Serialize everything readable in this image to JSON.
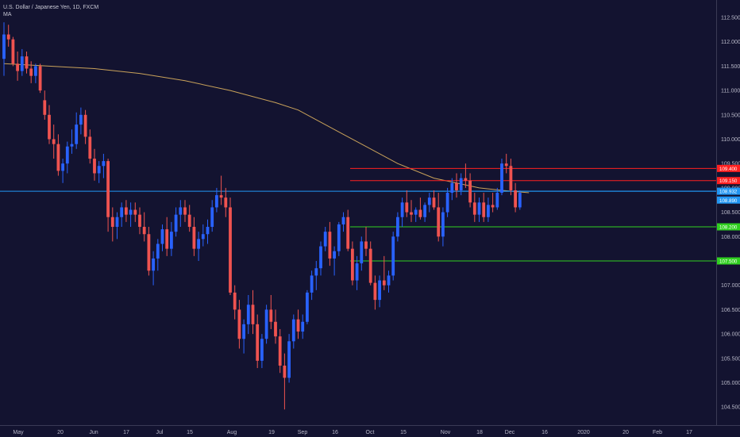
{
  "legend": {
    "title": "U.S. Dollar / Japanese Yen, 1D, FXCM",
    "indicator": "MA"
  },
  "colors": {
    "background": "#131330",
    "up": "#2962ff",
    "down": "#ef5350",
    "ma": "#c9a25a",
    "resistance": "#ff2020",
    "support": "#30d020",
    "current": "#2196f3",
    "axis_text": "#b8b8c8"
  },
  "chart_data": {
    "type": "candlestick",
    "title": "U.S. Dollar / Japanese Yen, 1D, FXCM",
    "y_axis": {
      "ticks": [
        "112.500",
        "112.000",
        "111.500",
        "111.000",
        "110.500",
        "110.000",
        "109.500",
        "109.000",
        "108.500",
        "108.000",
        "107.500",
        "107.000",
        "106.500",
        "106.000",
        "105.500",
        "105.000",
        "104.500"
      ],
      "range": [
        104.3,
        112.8
      ],
      "position": "right"
    },
    "x_axis": {
      "ticks": [
        "May",
        "20",
        "Jun",
        "17",
        "Jul",
        "15",
        "Aug",
        "19",
        "Sep",
        "16",
        "Oct",
        "15",
        "Nov",
        "18",
        "Dec",
        "16",
        "2020",
        "20",
        "Feb",
        "17"
      ]
    },
    "horizontal_levels": [
      {
        "label": "109.400",
        "value": 109.4,
        "kind": "resistance"
      },
      {
        "label": "109.150",
        "value": 109.15,
        "kind": "resistance"
      },
      {
        "label": "108.932",
        "value": 108.932,
        "kind": "current"
      },
      {
        "label": "108.890",
        "value": 108.75,
        "kind": "current"
      },
      {
        "label": "108.200",
        "value": 108.2,
        "kind": "support"
      },
      {
        "label": "107.500",
        "value": 107.5,
        "kind": "support"
      }
    ],
    "candles_ohlc": [
      [
        111.65,
        112.4,
        111.3,
        112.15
      ],
      [
        112.15,
        112.35,
        111.9,
        112.05
      ],
      [
        112.05,
        112.1,
        111.5,
        111.55
      ],
      [
        111.55,
        111.8,
        111.2,
        111.4
      ],
      [
        111.4,
        111.85,
        111.3,
        111.7
      ],
      [
        111.7,
        111.8,
        111.35,
        111.45
      ],
      [
        111.45,
        111.6,
        111.15,
        111.3
      ],
      [
        111.3,
        111.55,
        111.15,
        111.5
      ],
      [
        111.5,
        111.55,
        110.95,
        111.0
      ],
      [
        110.8,
        111.0,
        110.4,
        110.5
      ],
      [
        110.5,
        110.7,
        109.9,
        110.0
      ],
      [
        110.0,
        110.3,
        109.6,
        109.9
      ],
      [
        109.9,
        110.1,
        109.25,
        109.35
      ],
      [
        109.35,
        109.6,
        109.1,
        109.5
      ],
      [
        109.5,
        109.95,
        109.3,
        109.85
      ],
      [
        109.85,
        110.2,
        109.7,
        109.9
      ],
      [
        109.9,
        110.55,
        109.8,
        110.3
      ],
      [
        110.3,
        110.65,
        110.1,
        110.5
      ],
      [
        110.5,
        110.6,
        109.9,
        110.05
      ],
      [
        110.05,
        110.2,
        109.5,
        109.6
      ],
      [
        109.6,
        109.8,
        109.15,
        109.3
      ],
      [
        109.3,
        109.55,
        109.1,
        109.45
      ],
      [
        109.45,
        109.7,
        109.2,
        109.55
      ],
      [
        109.55,
        109.6,
        108.1,
        108.4
      ],
      [
        108.4,
        108.6,
        107.9,
        108.2
      ],
      [
        108.2,
        108.5,
        107.95,
        108.4
      ],
      [
        108.4,
        108.7,
        108.2,
        108.6
      ],
      [
        108.6,
        108.75,
        108.3,
        108.45
      ],
      [
        108.45,
        108.7,
        108.2,
        108.55
      ],
      [
        108.55,
        108.7,
        108.3,
        108.45
      ],
      [
        108.45,
        108.6,
        108.05,
        108.2
      ],
      [
        108.2,
        108.5,
        107.9,
        108.05
      ],
      [
        108.05,
        108.2,
        107.2,
        107.3
      ],
      [
        107.3,
        107.7,
        107.0,
        107.55
      ],
      [
        107.55,
        107.95,
        107.3,
        107.85
      ],
      [
        107.85,
        108.25,
        107.7,
        108.15
      ],
      [
        108.15,
        108.4,
        107.6,
        107.75
      ],
      [
        107.75,
        108.3,
        107.6,
        108.1
      ],
      [
        108.1,
        108.6,
        108.0,
        108.45
      ],
      [
        108.45,
        108.75,
        108.2,
        108.6
      ],
      [
        108.6,
        108.75,
        108.3,
        108.45
      ],
      [
        108.45,
        108.65,
        108.1,
        108.2
      ],
      [
        108.2,
        108.4,
        107.6,
        107.75
      ],
      [
        107.75,
        108.1,
        107.5,
        107.95
      ],
      [
        107.95,
        108.25,
        107.8,
        108.05
      ],
      [
        108.05,
        108.35,
        107.85,
        108.2
      ],
      [
        108.2,
        108.75,
        108.1,
        108.6
      ],
      [
        108.6,
        109.0,
        108.5,
        108.85
      ],
      [
        108.85,
        109.25,
        108.65,
        108.8
      ],
      [
        108.8,
        109.0,
        108.4,
        108.6
      ],
      [
        108.6,
        108.8,
        106.8,
        106.85
      ],
      [
        106.85,
        107.0,
        106.3,
        106.5
      ],
      [
        106.5,
        106.7,
        105.7,
        105.9
      ],
      [
        105.9,
        106.3,
        105.6,
        106.2
      ],
      [
        106.2,
        106.8,
        106.0,
        106.6
      ],
      [
        106.6,
        106.9,
        106.0,
        106.2
      ],
      [
        106.2,
        106.4,
        105.3,
        105.45
      ],
      [
        105.45,
        106.0,
        105.3,
        105.9
      ],
      [
        105.9,
        106.6,
        105.8,
        106.5
      ],
      [
        106.5,
        106.8,
        106.1,
        106.25
      ],
      [
        106.25,
        106.5,
        105.8,
        105.95
      ],
      [
        105.95,
        106.1,
        105.2,
        105.35
      ],
      [
        105.35,
        105.6,
        104.45,
        105.1
      ],
      [
        105.1,
        106.0,
        105.0,
        105.85
      ],
      [
        105.85,
        106.4,
        105.7,
        106.3
      ],
      [
        106.3,
        106.5,
        105.9,
        106.05
      ],
      [
        106.05,
        106.4,
        105.9,
        106.25
      ],
      [
        106.25,
        106.9,
        106.2,
        106.85
      ],
      [
        106.85,
        107.3,
        106.7,
        107.2
      ],
      [
        107.2,
        107.5,
        106.9,
        107.35
      ],
      [
        107.35,
        107.9,
        107.2,
        107.8
      ],
      [
        107.8,
        108.2,
        107.7,
        108.1
      ],
      [
        108.1,
        108.3,
        107.4,
        107.55
      ],
      [
        107.55,
        107.8,
        107.2,
        107.7
      ],
      [
        107.7,
        108.3,
        107.6,
        108.25
      ],
      [
        108.25,
        108.5,
        108.1,
        108.4
      ],
      [
        108.4,
        108.55,
        107.7,
        107.75
      ],
      [
        107.75,
        107.9,
        107.0,
        107.1
      ],
      [
        107.1,
        107.6,
        106.9,
        107.45
      ],
      [
        107.45,
        108.0,
        107.3,
        107.9
      ],
      [
        107.9,
        108.2,
        107.6,
        107.75
      ],
      [
        107.75,
        107.9,
        107.0,
        107.05
      ],
      [
        107.05,
        107.2,
        106.5,
        106.7
      ],
      [
        106.7,
        107.2,
        106.55,
        107.1
      ],
      [
        107.1,
        107.6,
        106.9,
        107.0
      ],
      [
        107.0,
        107.3,
        106.85,
        107.2
      ],
      [
        107.2,
        108.1,
        107.1,
        108.0
      ],
      [
        108.0,
        108.5,
        107.9,
        108.4
      ],
      [
        108.4,
        108.8,
        108.2,
        108.7
      ],
      [
        108.7,
        108.95,
        108.4,
        108.5
      ],
      [
        108.5,
        108.75,
        108.3,
        108.45
      ],
      [
        108.45,
        108.6,
        108.3,
        108.55
      ],
      [
        108.55,
        108.8,
        108.35,
        108.4
      ],
      [
        108.4,
        108.7,
        108.3,
        108.65
      ],
      [
        108.65,
        108.9,
        108.5,
        108.8
      ],
      [
        108.8,
        108.95,
        108.55,
        108.6
      ],
      [
        108.6,
        108.9,
        107.9,
        108.0
      ],
      [
        108.0,
        108.6,
        107.8,
        108.5
      ],
      [
        108.5,
        109.0,
        108.4,
        108.9
      ],
      [
        108.9,
        109.2,
        108.75,
        109.1
      ],
      [
        109.1,
        109.3,
        108.8,
        108.95
      ],
      [
        108.95,
        109.3,
        108.85,
        109.2
      ],
      [
        109.2,
        109.5,
        109.0,
        109.15
      ],
      [
        109.15,
        109.3,
        108.6,
        108.7
      ],
      [
        108.7,
        108.9,
        108.3,
        108.45
      ],
      [
        108.45,
        108.8,
        108.3,
        108.7
      ],
      [
        108.7,
        108.9,
        108.3,
        108.4
      ],
      [
        108.4,
        108.8,
        108.3,
        108.65
      ],
      [
        108.65,
        108.9,
        108.5,
        108.6
      ],
      [
        108.6,
        109.0,
        108.55,
        108.9
      ],
      [
        108.9,
        109.6,
        108.85,
        109.5
      ],
      [
        109.5,
        109.7,
        109.3,
        109.45
      ],
      [
        109.45,
        109.6,
        108.85,
        108.95
      ],
      [
        108.95,
        109.1,
        108.5,
        108.6
      ],
      [
        108.6,
        108.95,
        108.55,
        108.9
      ]
    ],
    "moving_average": [
      [
        0,
        111.55
      ],
      [
        10,
        111.5
      ],
      [
        20,
        111.45
      ],
      [
        30,
        111.35
      ],
      [
        40,
        111.2
      ],
      [
        50,
        111.0
      ],
      [
        60,
        110.75
      ],
      [
        65,
        110.6
      ],
      [
        75,
        110.1
      ],
      [
        80,
        109.85
      ],
      [
        87,
        109.5
      ],
      [
        95,
        109.2
      ],
      [
        100,
        109.1
      ],
      [
        105,
        109.0
      ],
      [
        110,
        108.95
      ],
      [
        116,
        108.9
      ]
    ]
  }
}
